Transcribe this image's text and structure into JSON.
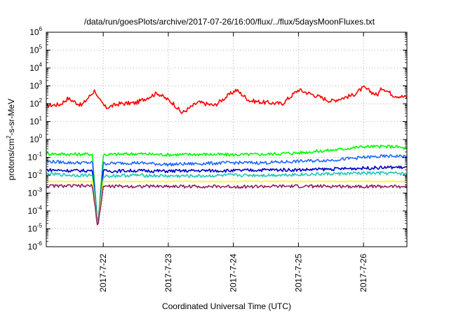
{
  "chart_data": {
    "type": "line",
    "title": "/data/run/goesPlots/archive/2017-07-26/16:00/flux/../flux/5daysMoonFluxes.txt",
    "xlabel": "Coordinated Universal Time (UTC)",
    "ylabel": {
      "prefix": "protons/cm",
      "sup": "2",
      "suffix": "-s-sr-MeV"
    },
    "x_range": [
      "2017-07-21 03:00",
      "2017-07-26 16:00"
    ],
    "x_ticks": [
      "2017-7-22",
      "2017-7-23",
      "2017-7-24",
      "2017-7-25",
      "2017-7-26"
    ],
    "y_scale": "log",
    "ylim": [
      1e-06,
      1000000.0
    ],
    "y_ticks": [
      {
        "base": "10",
        "exp": "-6"
      },
      {
        "base": "10",
        "exp": "-5"
      },
      {
        "base": "10",
        "exp": "-4"
      },
      {
        "base": "10",
        "exp": "-3"
      },
      {
        "base": "10",
        "exp": "-2"
      },
      {
        "base": "10",
        "exp": "-1"
      },
      {
        "base": "10",
        "exp": "0"
      },
      {
        "base": "10",
        "exp": "1"
      },
      {
        "base": "10",
        "exp": "2"
      },
      {
        "base": "10",
        "exp": "3"
      },
      {
        "base": "10",
        "exp": "4"
      },
      {
        "base": "10",
        "exp": "5"
      },
      {
        "base": "10",
        "exp": "6"
      }
    ],
    "grid": true,
    "series": [
      {
        "color": "#ff0000",
        "x": [
          "2017-07-21 03:00",
          "2017-07-21 08:00",
          "2017-07-21 11:00",
          "2017-07-21 16:00",
          "2017-07-21 21:00",
          "2017-07-21 22:00",
          "2017-07-22 01:00",
          "2017-07-22 06:00",
          "2017-07-22 12:00",
          "2017-07-22 20:00",
          "2017-07-23 02:00",
          "2017-07-23 05:00",
          "2017-07-23 11:00",
          "2017-07-23 17:00",
          "2017-07-24 01:00",
          "2017-07-24 06:00",
          "2017-07-24 11:00",
          "2017-07-24 18:00",
          "2017-07-25 00:00",
          "2017-07-25 06:00",
          "2017-07-25 12:00",
          "2017-07-25 20:00",
          "2017-07-26 00:00",
          "2017-07-26 05:00",
          "2017-07-26 07:00",
          "2017-07-26 11:00",
          "2017-07-26 16:00"
        ],
        "y": [
          80,
          90,
          200,
          80,
          600,
          200,
          60,
          100,
          110,
          400,
          100,
          30,
          120,
          80,
          600,
          150,
          120,
          100,
          600,
          300,
          140,
          300,
          800,
          300,
          800,
          300,
          230
        ]
      },
      {
        "color": "#00ff00",
        "x": [
          "2017-07-21 03:00",
          "2017-07-21 12:00",
          "2017-07-21 20:00",
          "2017-07-21 22:00",
          "2017-07-22 00:00",
          "2017-07-22 12:00",
          "2017-07-23 00:00",
          "2017-07-23 12:00",
          "2017-07-24 00:00",
          "2017-07-24 12:00",
          "2017-07-25 00:00",
          "2017-07-25 12:00",
          "2017-07-26 00:00",
          "2017-07-26 12:00",
          "2017-07-26 16:00"
        ],
        "y": [
          0.16,
          0.15,
          0.15,
          1.2e-05,
          0.14,
          0.16,
          0.14,
          0.15,
          0.14,
          0.15,
          0.18,
          0.25,
          0.4,
          0.4,
          0.3
        ]
      },
      {
        "color": "#1e6aff",
        "x": [
          "2017-07-21 03:00",
          "2017-07-21 12:00",
          "2017-07-21 20:00",
          "2017-07-21 22:00",
          "2017-07-22 00:00",
          "2017-07-22 12:00",
          "2017-07-23 00:00",
          "2017-07-23 12:00",
          "2017-07-24 00:00",
          "2017-07-24 12:00",
          "2017-07-25 00:00",
          "2017-07-25 12:00",
          "2017-07-26 00:00",
          "2017-07-26 12:00",
          "2017-07-26 16:00"
        ],
        "y": [
          0.06,
          0.05,
          0.05,
          1.2e-05,
          0.045,
          0.05,
          0.04,
          0.045,
          0.05,
          0.05,
          0.06,
          0.07,
          0.1,
          0.12,
          0.11
        ]
      },
      {
        "color": "#0000c8",
        "x": [
          "2017-07-21 03:00",
          "2017-07-21 12:00",
          "2017-07-21 20:00",
          "2017-07-21 22:00",
          "2017-07-22 00:00",
          "2017-07-22 12:00",
          "2017-07-23 00:00",
          "2017-07-23 12:00",
          "2017-07-24 00:00",
          "2017-07-24 12:00",
          "2017-07-25 00:00",
          "2017-07-25 12:00",
          "2017-07-26 00:00",
          "2017-07-26 12:00",
          "2017-07-26 16:00"
        ],
        "y": [
          0.02,
          0.018,
          0.018,
          1.2e-05,
          0.017,
          0.018,
          0.017,
          0.018,
          0.018,
          0.02,
          0.02,
          0.022,
          0.025,
          0.028,
          0.027
        ]
      },
      {
        "color": "#20c8b4",
        "x": [
          "2017-07-21 03:00",
          "2017-07-21 12:00",
          "2017-07-21 20:00",
          "2017-07-21 22:00",
          "2017-07-22 00:00",
          "2017-07-22 12:00",
          "2017-07-23 00:00",
          "2017-07-23 12:00",
          "2017-07-24 00:00",
          "2017-07-24 12:00",
          "2017-07-25 00:00",
          "2017-07-25 12:00",
          "2017-07-26 00:00",
          "2017-07-26 12:00",
          "2017-07-26 16:00"
        ],
        "y": [
          0.012,
          0.01,
          0.01,
          1.2e-05,
          0.009,
          0.01,
          0.009,
          0.009,
          0.01,
          0.01,
          0.011,
          0.012,
          0.013,
          0.013,
          0.012
        ]
      },
      {
        "color": "#ffff00",
        "x": [
          "2017-07-21 03:00",
          "2017-07-21 20:00",
          "2017-07-21 22:00",
          "2017-07-22 00:00",
          "2017-07-23 00:00",
          "2017-07-24 00:00",
          "2017-07-25 00:00",
          "2017-07-26 00:00",
          "2017-07-26 16:00"
        ],
        "y": [
          0.0045,
          0.0045,
          1.2e-05,
          0.0045,
          0.0045,
          0.0045,
          0.0045,
          0.0045,
          0.0045
        ]
      },
      {
        "color": "#902060",
        "x": [
          "2017-07-21 03:00",
          "2017-07-21 20:00",
          "2017-07-21 22:00",
          "2017-07-22 00:00",
          "2017-07-23 00:00",
          "2017-07-24 00:00",
          "2017-07-25 00:00",
          "2017-07-26 00:00",
          "2017-07-26 16:00"
        ],
        "y": [
          0.0025,
          0.0025,
          1.2e-05,
          0.0024,
          0.0024,
          0.0023,
          0.0024,
          0.0024,
          0.0023
        ]
      }
    ]
  }
}
